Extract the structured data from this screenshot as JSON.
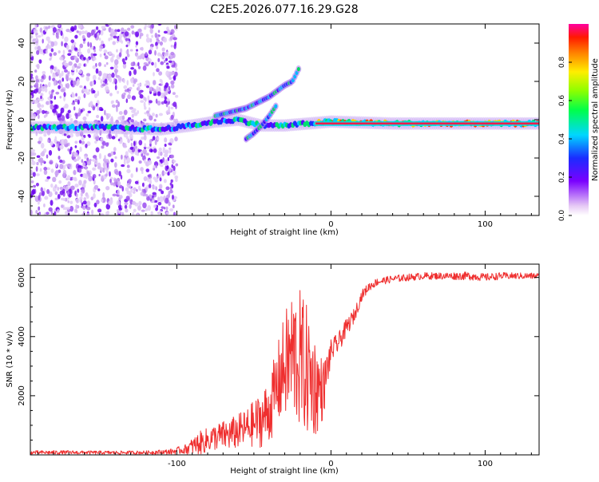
{
  "title": "C2E5.2026.077.16.29.G28",
  "colors": {
    "snr_line": "#ef2f2f",
    "axis": "#000000",
    "background": "#ffffff"
  },
  "chart_data": [
    {
      "type": "heatmap",
      "xlabel": "Height of straight line (km)",
      "ylabel": "Frequency (Hz)",
      "xlim": [
        -195,
        135
      ],
      "ylim": [
        -50,
        50
      ],
      "x_ticks": [
        -100,
        0,
        100
      ],
      "x_tick_labels": [
        "-100",
        "0",
        "100"
      ],
      "y_ticks": [
        -40,
        -20,
        0,
        20,
        40
      ],
      "y_tick_labels": [
        "-40",
        "-20",
        "0",
        "20",
        "40"
      ],
      "colorbar": {
        "label": "Normalized spectral amplitude",
        "range": [
          0,
          1
        ],
        "ticks": [
          0.0,
          0.2,
          0.4,
          0.6,
          0.8
        ],
        "tick_labels": [
          "0.0",
          "0.2",
          "0.4",
          "0.6",
          "0.8"
        ]
      },
      "features": {
        "noise_region_x": [
          -195,
          -100
        ],
        "main_line": [
          {
            "x": -195,
            "f": -4
          },
          {
            "x": -150,
            "f": -4
          },
          {
            "x": -110,
            "f": -5
          },
          {
            "x": -90,
            "f": -3
          },
          {
            "x": -75,
            "f": -1
          },
          {
            "x": -60,
            "f": 0
          },
          {
            "x": -45,
            "f": -3
          },
          {
            "x": -30,
            "f": -3
          },
          {
            "x": 0,
            "f": -1
          },
          {
            "x": 40,
            "f": -2
          },
          {
            "x": 80,
            "f": -2
          },
          {
            "x": 135,
            "f": -2
          }
        ],
        "upper_branch": [
          {
            "x": -75,
            "f": 2
          },
          {
            "x": -55,
            "f": 6
          },
          {
            "x": -40,
            "f": 12
          },
          {
            "x": -30,
            "f": 18
          },
          {
            "x": -25,
            "f": 20
          },
          {
            "x": -20,
            "f": 28
          }
        ],
        "lower_branch": [
          {
            "x": -55,
            "f": -10
          },
          {
            "x": -50,
            "f": -7
          },
          {
            "x": -45,
            "f": -3
          },
          {
            "x": -40,
            "f": 2
          },
          {
            "x": -35,
            "f": 8
          }
        ],
        "strong_line_x": [
          -10,
          135
        ],
        "strong_line_f": -2
      }
    },
    {
      "type": "line",
      "xlabel": "Height of straight line (km)",
      "ylabel": "SNR (10 * v/v)",
      "xlim": [
        -195,
        135
      ],
      "ylim": [
        0,
        6450
      ],
      "x_ticks": [
        -100,
        0,
        100
      ],
      "x_tick_labels": [
        "-100",
        "0",
        "100"
      ],
      "y_ticks": [
        2000,
        4000,
        6000
      ],
      "y_tick_labels": [
        "2000",
        "4000",
        "6000"
      ],
      "series": [
        {
          "name": "SNR",
          "x": [
            -195,
            -180,
            -160,
            -140,
            -120,
            -105,
            -95,
            -85,
            -75,
            -65,
            -55,
            -45,
            -40,
            -35,
            -30,
            -25,
            -20,
            -15,
            -10,
            -5,
            0,
            5,
            10,
            15,
            20,
            25,
            30,
            40,
            50,
            60,
            70,
            80,
            90,
            100,
            110,
            120,
            135
          ],
          "values": [
            80,
            80,
            80,
            75,
            80,
            100,
            180,
            400,
            600,
            700,
            900,
            1200,
            1500,
            2300,
            3000,
            3400,
            3200,
            2800,
            2300,
            2200,
            3500,
            3800,
            4300,
            4700,
            5400,
            5700,
            5850,
            5950,
            6000,
            6050,
            6050,
            6050,
            6050,
            6000,
            6050,
            6050,
            6050
          ],
          "noise": [
            60,
            70,
            60,
            60,
            60,
            90,
            150,
            400,
            450,
            550,
            650,
            950,
            1100,
            1400,
            1800,
            2300,
            2400,
            2200,
            1700,
            1000,
            400,
            350,
            300,
            250,
            180,
            150,
            130,
            120,
            120,
            120,
            120,
            130,
            140,
            130,
            120,
            110,
            110
          ]
        }
      ]
    }
  ]
}
